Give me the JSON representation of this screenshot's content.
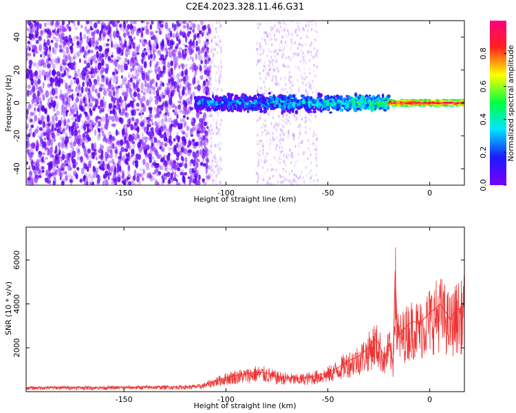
{
  "figure_title": "C2E4.2023.328.11.46.G31",
  "chart_data": [
    {
      "type": "heatmap",
      "title": "",
      "xlabel": "Height of straight line (km)",
      "ylabel": "Frequency (Hz)",
      "xlim": [
        -198,
        17
      ],
      "ylim": [
        -50,
        50
      ],
      "xticks": [
        -150,
        -100,
        -50,
        0
      ],
      "yticks": [
        -40,
        -20,
        0,
        20,
        40
      ],
      "colorbar": {
        "label": "Normalized spectral amplitude",
        "range": [
          0.0,
          1.0
        ],
        "ticks": [
          0.0,
          0.2,
          0.4,
          0.6,
          0.8
        ],
        "colormap": [
          "#7a00ff",
          "#1a1aff",
          "#00e5ff",
          "#00ff40",
          "#ffff00",
          "#ff2020",
          "#ff0080"
        ]
      },
      "regions": [
        {
          "x_range": [
            -198,
            -108
          ],
          "freq_range": [
            -50,
            50
          ],
          "amplitude": 0.05
        },
        {
          "x_range": [
            -85,
            -55
          ],
          "freq_range": [
            -50,
            50
          ],
          "amplitude": 0.02
        },
        {
          "x_range": [
            -115,
            -20
          ],
          "freq_range": [
            -5,
            5
          ],
          "amplitude": 0.3
        },
        {
          "x_range": [
            -20,
            17
          ],
          "freq_range": [
            -2,
            2
          ],
          "amplitude": 0.9
        }
      ]
    },
    {
      "type": "line",
      "title": "",
      "xlabel": "Height of straight line (km)",
      "ylabel": "SNR (10 * v/v)",
      "xlim": [
        -198,
        17
      ],
      "ylim": [
        0,
        7500
      ],
      "xticks": [
        -150,
        -100,
        -50,
        0
      ],
      "yticks": [
        2000,
        4000,
        6000
      ],
      "color": "#ee3333",
      "x": [
        -198,
        -180,
        -160,
        -140,
        -120,
        -112,
        -105,
        -100,
        -95,
        -90,
        -85,
        -80,
        -75,
        -70,
        -65,
        -60,
        -55,
        -50,
        -45,
        -40,
        -35,
        -30,
        -27,
        -25,
        -22,
        -20,
        -18,
        -17,
        -16,
        -15,
        -12,
        -10,
        -8,
        -5,
        -3,
        0,
        3,
        5,
        8,
        10,
        12,
        14,
        15,
        17
      ],
      "y": [
        180,
        200,
        190,
        210,
        220,
        260,
        500,
        650,
        750,
        800,
        900,
        850,
        700,
        650,
        600,
        650,
        750,
        850,
        1100,
        1400,
        1600,
        2000,
        2400,
        2200,
        1500,
        2200,
        1300,
        5500,
        3000,
        2600,
        2900,
        3100,
        3200,
        3100,
        3300,
        3600,
        3800,
        4000,
        3600,
        3300,
        3600,
        3800,
        3700,
        4000
      ]
    }
  ]
}
